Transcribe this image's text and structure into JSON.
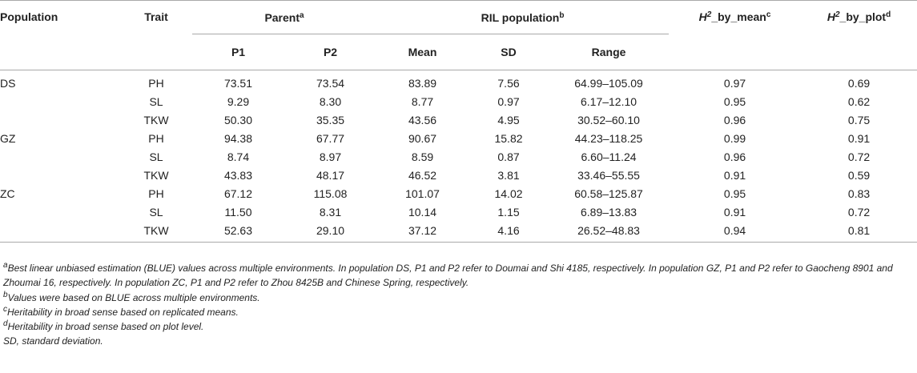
{
  "headers": {
    "population": "Population",
    "trait": "Trait",
    "parent": "Parent",
    "parent_sup": "a",
    "ril": "RIL population",
    "ril_sup": "b",
    "p1": "P1",
    "p2": "P2",
    "mean": "Mean",
    "sd": "SD",
    "range": "Range",
    "h2_mean_pre": "H",
    "h2_mean_exp": "2",
    "h2_mean_post": "_by_mean",
    "h2_mean_sup": "c",
    "h2_plot_pre": "H",
    "h2_plot_exp": "2",
    "h2_plot_post": "_by_plot",
    "h2_plot_sup": "d"
  },
  "rows": [
    {
      "population": "DS",
      "trait": "PH",
      "p1": "73.51",
      "p2": "73.54",
      "mean": "83.89",
      "sd": "7.56",
      "range": "64.99–105.09",
      "h2_mean": "0.97",
      "h2_plot": "0.69"
    },
    {
      "population": "",
      "trait": "SL",
      "p1": "9.29",
      "p2": "8.30",
      "mean": "8.77",
      "sd": "0.97",
      "range": "6.17–12.10",
      "h2_mean": "0.95",
      "h2_plot": "0.62"
    },
    {
      "population": "",
      "trait": "TKW",
      "p1": "50.30",
      "p2": "35.35",
      "mean": "43.56",
      "sd": "4.95",
      "range": "30.52–60.10",
      "h2_mean": "0.96",
      "h2_plot": "0.75"
    },
    {
      "population": "GZ",
      "trait": "PH",
      "p1": "94.38",
      "p2": "67.77",
      "mean": "90.67",
      "sd": "15.82",
      "range": "44.23–118.25",
      "h2_mean": "0.99",
      "h2_plot": "0.91"
    },
    {
      "population": "",
      "trait": "SL",
      "p1": "8.74",
      "p2": "8.97",
      "mean": "8.59",
      "sd": "0.87",
      "range": "6.60–11.24",
      "h2_mean": "0.96",
      "h2_plot": "0.72"
    },
    {
      "population": "",
      "trait": "TKW",
      "p1": "43.83",
      "p2": "48.17",
      "mean": "46.52",
      "sd": "3.81",
      "range": "33.46–55.55",
      "h2_mean": "0.91",
      "h2_plot": "0.59"
    },
    {
      "population": "ZC",
      "trait": "PH",
      "p1": "67.12",
      "p2": "115.08",
      "mean": "101.07",
      "sd": "14.02",
      "range": "60.58–125.87",
      "h2_mean": "0.95",
      "h2_plot": "0.83"
    },
    {
      "population": "",
      "trait": "SL",
      "p1": "11.50",
      "p2": "8.31",
      "mean": "10.14",
      "sd": "1.15",
      "range": "6.89–13.83",
      "h2_mean": "0.91",
      "h2_plot": "0.72"
    },
    {
      "population": "",
      "trait": "TKW",
      "p1": "52.63",
      "p2": "29.10",
      "mean": "37.12",
      "sd": "4.16",
      "range": "26.52–48.83",
      "h2_mean": "0.94",
      "h2_plot": "0.81"
    }
  ],
  "footnotes": [
    {
      "mark": "a",
      "text": "Best linear unbiased estimation (BLUE) values across multiple environments. In population DS, P1 and P2 refer to Doumai and Shi 4185, respectively. In population GZ, P1 and P2 refer to Gaocheng 8901 and Zhoumai 16, respectively. In population ZC, P1 and P2 refer to Zhou 8425B and Chinese Spring, respectively."
    },
    {
      "mark": "b",
      "text": "Values were based on BLUE across multiple environments."
    },
    {
      "mark": "c",
      "text": "Heritability in broad sense based on replicated means."
    },
    {
      "mark": "d",
      "text": "Heritability in broad sense based on plot level."
    },
    {
      "mark": "",
      "text": "SD, standard deviation."
    }
  ]
}
